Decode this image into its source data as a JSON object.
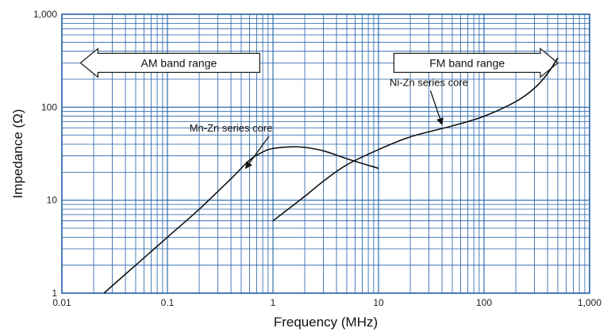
{
  "chart_data": {
    "type": "line",
    "xlabel": "Frequency (MHz)",
    "ylabel": "Impedance (Ω)",
    "x_scale": "log",
    "y_scale": "log",
    "xlim": [
      0.01,
      1000
    ],
    "ylim": [
      1,
      1000
    ],
    "grid": true,
    "grid_color": "#1f5fa8",
    "x_ticks": [
      {
        "value": 0.01,
        "label": "0.01"
      },
      {
        "value": 0.1,
        "label": "0.1"
      },
      {
        "value": 1,
        "label": "1"
      },
      {
        "value": 10,
        "label": "10"
      },
      {
        "value": 100,
        "label": "100"
      },
      {
        "value": 1000,
        "label": "1,000"
      }
    ],
    "y_ticks": [
      {
        "value": 1,
        "label": "1"
      },
      {
        "value": 10,
        "label": "10"
      },
      {
        "value": 100,
        "label": "100"
      },
      {
        "value": 1000,
        "label": "1,000"
      }
    ],
    "series": [
      {
        "name": "Mn-Zn series core",
        "color": "#111111",
        "points": [
          [
            0.025,
            1.0
          ],
          [
            0.05,
            2.0
          ],
          [
            0.1,
            4.0
          ],
          [
            0.2,
            8.0
          ],
          [
            0.4,
            17
          ],
          [
            0.6,
            27
          ],
          [
            0.8,
            33
          ],
          [
            1.0,
            36
          ],
          [
            1.5,
            37.5
          ],
          [
            2.0,
            37
          ],
          [
            3.0,
            34
          ],
          [
            5.0,
            28
          ],
          [
            10.0,
            22
          ]
        ]
      },
      {
        "name": "Ni-Zn series core",
        "color": "#111111",
        "points": [
          [
            1.0,
            6.0
          ],
          [
            2.0,
            11
          ],
          [
            3.0,
            16
          ],
          [
            5.0,
            24
          ],
          [
            10.0,
            35
          ],
          [
            20.0,
            48
          ],
          [
            50.0,
            63
          ],
          [
            100.0,
            80
          ],
          [
            200.0,
            115
          ],
          [
            300.0,
            160
          ],
          [
            400.0,
            230
          ],
          [
            500.0,
            340
          ]
        ]
      }
    ],
    "annotations": [
      {
        "text": "Mn-Zn series core",
        "x": 0.4,
        "y": 55,
        "arrow_to": [
          0.55,
          22
        ]
      },
      {
        "text": "Ni-Zn series core",
        "x": 30,
        "y": 170,
        "arrow_to": [
          40,
          65
        ]
      }
    ],
    "bands": [
      {
        "text": "AM band range",
        "direction": "left",
        "x_from": 0.015,
        "x_to": 0.75,
        "y": 300
      },
      {
        "text": "FM band range",
        "direction": "right",
        "x_from": 14,
        "x_to": 500,
        "y": 300
      }
    ]
  }
}
